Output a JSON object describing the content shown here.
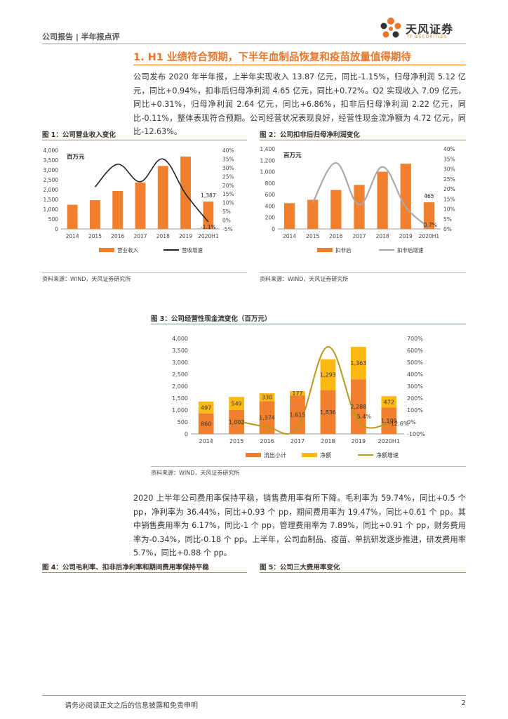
{
  "header": {
    "left_text": "公司报告 | 半年报点评",
    "logo_cn": "天风证券",
    "logo_en": "TF SECURITIES"
  },
  "section_title": "1. H1 业绩符合预期，下半年血制品恢复和疫苗放量值得期待",
  "paragraph1": "公司发布 2020 年半年报，上半年实现收入 13.87 亿元，同比-1.15%，归母净利润 5.12 亿元，同比+0.94%，扣非后归母净利润 4.65 亿元，同比+0.72%。Q2 实现收入 7.09 亿元，同比+0.31%，归母净利润 2.64 亿元，同比+6.86%，扣非后归母净利润 2.22 亿元，同比-0.11%，整体表现符合预期。公司经营状况表现良好，经营性现金流净额为 4.72 亿元，同比-12.63%。",
  "paragraph2": "2020 上半年公司费用率保持平稳，销售费用率有所下降。毛利率为 59.74%，同比+0.5 个 pp，净利率为 36.44%，同比+0.93 个 pp，期间费用率为 19.47%，同比+0.61 个 pp。其中销售费用率为 6.17%，同比-1 个 pp，管理费用率为 7.89%，同比+0.91 个 pp，财务费用率为-0.34%，同比-0.18 个 pp。上半年，公司血制品、疫苗、单抗研发逐步推进，研发费用率 5.7%，同比+0.88 个 pp。",
  "figures": {
    "fig1_caption": "图 1：公司营业收入变化",
    "fig2_caption": "图 2：公司扣非后归母净利润变化",
    "fig3_caption": "图 3：公司经营性现金流变化（百万元）",
    "fig4_caption": "图 4：公司毛利率、扣非后净利率和期间费用率保持平稳",
    "fig5_caption": "图 5：公司三大费用率变化",
    "source1": "资料来源：WIND，天风证券研究所",
    "source2": "资料来源：WIND，天风证券研究所",
    "source3": "资料来源：WIND，天风证券研究所"
  },
  "footer": {
    "disclaimer": "请务必阅读正文之后的信息披露和免责申明",
    "page": "2"
  },
  "colors": {
    "orange": "#e8762a",
    "bar_orange": "#f07f2e",
    "bar_yellow": "#fdb913",
    "olive": "#b59a1e",
    "grey": "#aaaaaa"
  },
  "chart_data": [
    {
      "type": "bar",
      "unit_label": "百万元",
      "categories": [
        "2014",
        "2015",
        "2016",
        "2017",
        "2018",
        "2019",
        "2020H1"
      ],
      "series": [
        {
          "name": "营业收入",
          "values": [
            1230,
            1460,
            1930,
            2360,
            3200,
            3680,
            1387
          ]
        },
        {
          "name": "营收增速",
          "type": "line",
          "values": [
            null,
            19,
            32,
            22,
            35,
            15,
            -1
          ]
        }
      ],
      "ylim": [
        0,
        4000
      ],
      "y2lim": [
        -5,
        40
      ],
      "yticks": [
        "0",
        "500",
        "1,000",
        "1,500",
        "2,000",
        "2,500",
        "3,000",
        "3,500",
        "4,000"
      ],
      "y2ticks": [
        "-5%",
        "0%",
        "5%",
        "10%",
        "15%",
        "20%",
        "25%",
        "30%",
        "35%",
        "40%"
      ],
      "data_labels": [
        "1,387",
        "-1.1%"
      ],
      "legend": "bottom"
    },
    {
      "type": "bar",
      "unit_label": "百万元",
      "categories": [
        "2014",
        "2015",
        "2016",
        "2017",
        "2018",
        "2019",
        "2020H1"
      ],
      "series": [
        {
          "name": "扣非后",
          "values": [
            450,
            510,
            680,
            770,
            1000,
            1140,
            465
          ]
        },
        {
          "name": "扣非后增速",
          "type": "line",
          "values": [
            null,
            13,
            33,
            12,
            31,
            11,
            0.7
          ]
        }
      ],
      "ylim": [
        0,
        1400
      ],
      "y2lim": [
        0,
        40
      ],
      "yticks": [
        "0",
        "200",
        "400",
        "600",
        "800",
        "1,000",
        "1,200",
        "1,400"
      ],
      "y2ticks": [
        "0%",
        "5%",
        "10%",
        "15%",
        "20%",
        "25%",
        "30%",
        "35%",
        "40%"
      ],
      "data_labels": [
        "465",
        "0.7%"
      ],
      "legend": "bottom"
    },
    {
      "type": "bar",
      "categories": [
        "2014",
        "2015",
        "2016",
        "2017",
        "2018",
        "2019",
        "2020H1"
      ],
      "series": [
        {
          "name": "流出小计",
          "values": [
            860,
            1002,
            1374,
            1615,
            1836,
            2288,
            1109
          ]
        },
        {
          "name": "净额",
          "values": [
            497,
            549,
            330,
            177,
            1293,
            1363,
            472
          ]
        },
        {
          "name": "净额增速",
          "type": "line",
          "values": [
            null,
            10,
            -40,
            -46,
            630,
            5.4,
            -12.6
          ]
        }
      ],
      "stacked": true,
      "ylim": [
        0,
        4000
      ],
      "y2lim": [
        -100,
        700
      ],
      "yticks": [
        "0",
        "500",
        "1,000",
        "1,500",
        "2,000",
        "2,500",
        "3,000",
        "3,500",
        "4,000"
      ],
      "y2ticks": [
        "-100%",
        "0%",
        "100%",
        "200%",
        "300%",
        "400%",
        "500%",
        "600%",
        "700%"
      ],
      "data_labels": [
        "860",
        "1,002",
        "1,374",
        "1,615",
        "1,836",
        "2,288",
        "1,109",
        "497",
        "549",
        "330",
        "177",
        "1,293",
        "1,363",
        "472",
        "5.4%",
        "-12.6%"
      ],
      "legend": "bottom"
    }
  ]
}
